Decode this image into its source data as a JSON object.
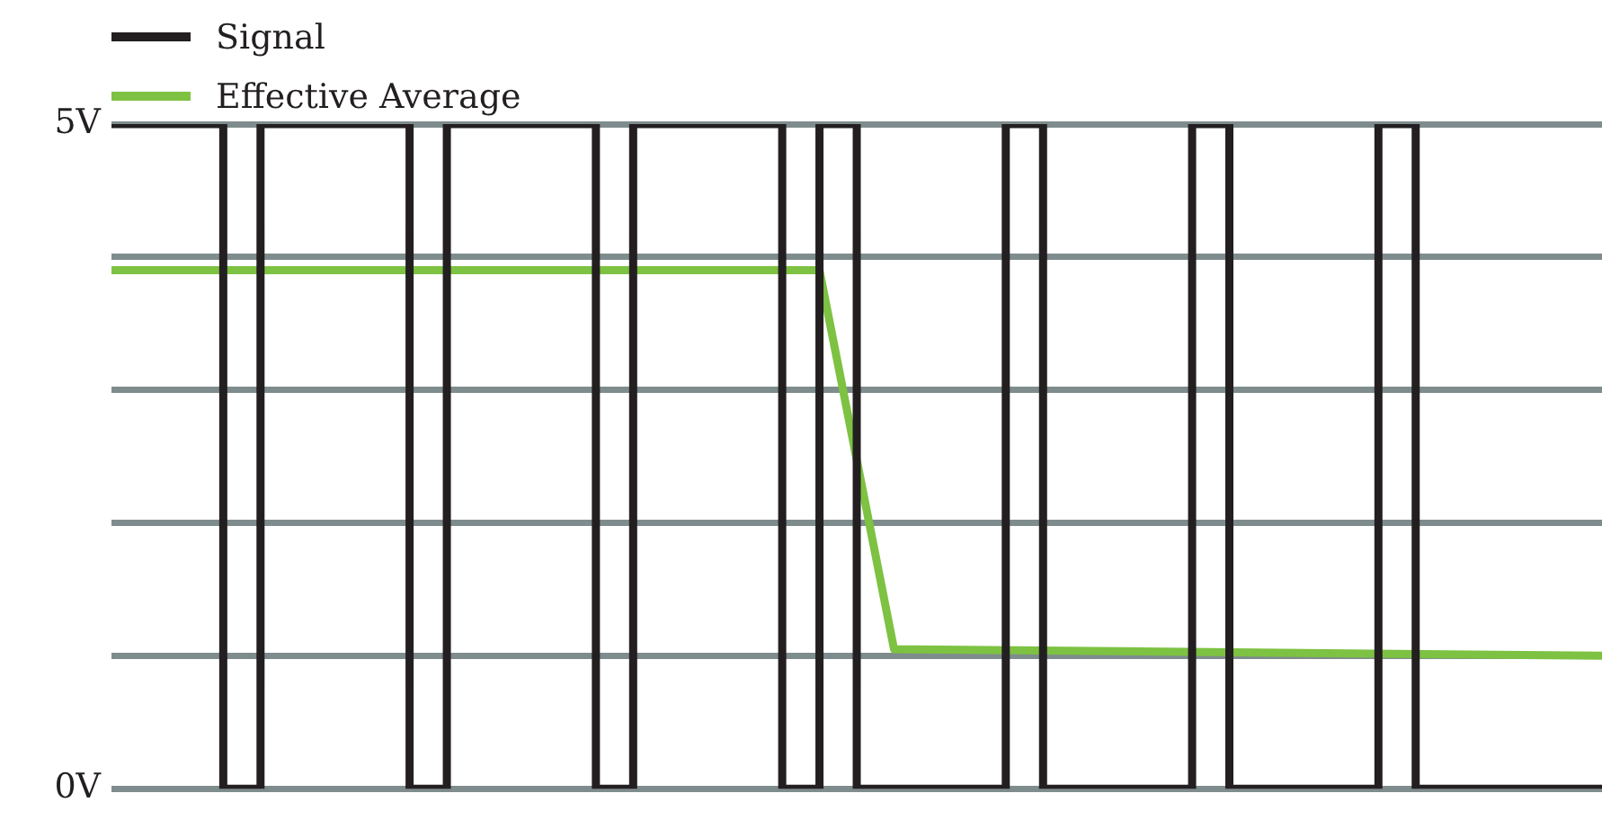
{
  "chart_data": {
    "type": "step",
    "categories": [
      null,
      null,
      null,
      null,
      null,
      null,
      null,
      null,
      null,
      null,
      null,
      null,
      null,
      null,
      null,
      null,
      null,
      null,
      null,
      null,
      null,
      null,
      null,
      null,
      null,
      null,
      null,
      null,
      null,
      null,
      null,
      null,
      null,
      null,
      null,
      null,
      null,
      null,
      null,
      null,
      null
    ],
    "series": [
      {
        "name": "Signal",
        "color": "#231f20",
        "values": [
          5,
          5,
          5,
          5,
          0,
          5,
          5,
          5,
          5,
          0,
          5,
          5,
          5,
          5,
          0,
          5,
          5,
          5,
          5,
          0,
          5,
          0,
          0,
          0,
          0,
          5,
          0,
          0,
          0,
          0,
          5,
          0,
          0,
          0,
          0,
          5,
          0,
          0,
          0,
          0,
          0
        ]
      },
      {
        "name": "Effective Average",
        "type": "line",
        "color": "#7dc242",
        "values": [
          3.9,
          null,
          null,
          null,
          null,
          null,
          null,
          null,
          null,
          null,
          null,
          null,
          null,
          null,
          null,
          null,
          null,
          null,
          null,
          3.9,
          null,
          1.05,
          null,
          null,
          null,
          null,
          null,
          null,
          null,
          null,
          null,
          null,
          null,
          null,
          null,
          null,
          null,
          null,
          null,
          null,
          1.0
        ]
      }
    ],
    "ylim": [
      0,
      5
    ],
    "yticks": [
      {
        "value": 0,
        "label": "0V"
      },
      {
        "value": 1,
        "label": null
      },
      {
        "value": 2,
        "label": null
      },
      {
        "value": 3,
        "label": null
      },
      {
        "value": 4,
        "label": null
      },
      {
        "value": 5,
        "label": "5V"
      }
    ],
    "grid": "y",
    "legend": "top left",
    "tick_labels": "y",
    "line_style": "solid",
    "marker": "none"
  }
}
